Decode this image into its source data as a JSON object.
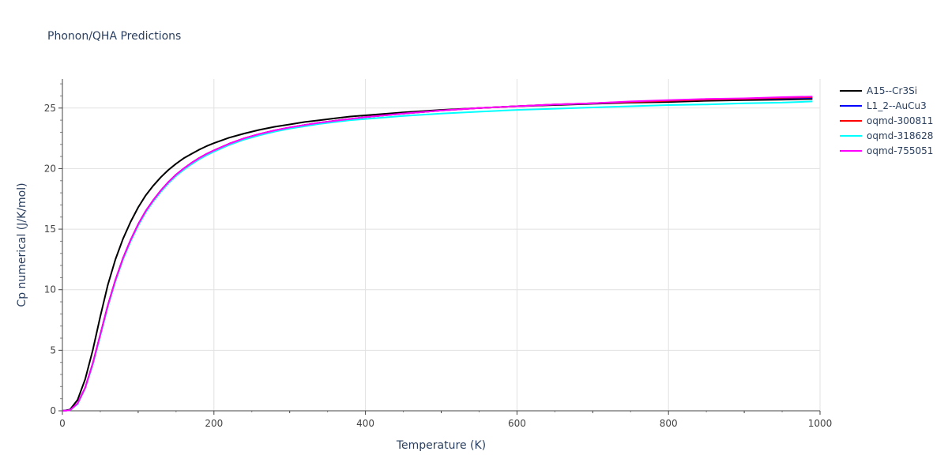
{
  "chart_data": {
    "type": "line",
    "title": "Phonon/QHA Predictions",
    "xlabel": "Temperature (K)",
    "ylabel": "Cp numerical (J/K/mol)",
    "xlim": [
      0,
      1000
    ],
    "ylim": [
      0,
      27.4
    ],
    "xticks": [
      0,
      200,
      400,
      600,
      800,
      1000
    ],
    "yticks": [
      0,
      5,
      10,
      15,
      20,
      25
    ],
    "grid": true,
    "legend_position": "top-right outside",
    "x": [
      0,
      10,
      20,
      30,
      40,
      50,
      60,
      70,
      80,
      90,
      100,
      110,
      120,
      130,
      140,
      150,
      160,
      170,
      180,
      190,
      200,
      220,
      240,
      260,
      280,
      300,
      320,
      340,
      360,
      380,
      400,
      450,
      500,
      550,
      600,
      650,
      700,
      750,
      800,
      850,
      900,
      950,
      990
    ],
    "series": [
      {
        "name": "A15--Cr3Si",
        "color": "#000000",
        "values": [
          0,
          0.1,
          0.9,
          2.6,
          5.0,
          7.8,
          10.4,
          12.5,
          14.2,
          15.6,
          16.8,
          17.8,
          18.6,
          19.3,
          19.9,
          20.4,
          20.85,
          21.2,
          21.55,
          21.85,
          22.1,
          22.55,
          22.9,
          23.2,
          23.45,
          23.65,
          23.85,
          24.0,
          24.15,
          24.3,
          24.4,
          24.65,
          24.85,
          25.0,
          25.15,
          25.25,
          25.35,
          25.45,
          25.5,
          25.6,
          25.65,
          25.7,
          25.75
        ]
      },
      {
        "name": "L1_2--AuCu3",
        "color": "#0000ff",
        "values": [
          0,
          0.05,
          0.6,
          1.9,
          3.9,
          6.3,
          8.7,
          10.8,
          12.6,
          14.1,
          15.4,
          16.5,
          17.4,
          18.2,
          18.9,
          19.5,
          20.0,
          20.45,
          20.85,
          21.2,
          21.5,
          22.05,
          22.5,
          22.85,
          23.15,
          23.4,
          23.6,
          23.8,
          23.95,
          24.1,
          24.25,
          24.55,
          24.8,
          25.0,
          25.15,
          25.3,
          25.4,
          25.5,
          25.6,
          25.7,
          25.75,
          25.8,
          25.85
        ]
      },
      {
        "name": "oqmd-300811",
        "color": "#ff0000",
        "values": [
          0,
          0.05,
          0.6,
          1.9,
          3.9,
          6.3,
          8.7,
          10.8,
          12.6,
          14.1,
          15.4,
          16.5,
          17.4,
          18.2,
          18.9,
          19.5,
          20.0,
          20.45,
          20.85,
          21.2,
          21.5,
          22.05,
          22.5,
          22.85,
          23.15,
          23.4,
          23.6,
          23.8,
          23.95,
          24.1,
          24.25,
          24.55,
          24.8,
          25.0,
          25.15,
          25.3,
          25.4,
          25.5,
          25.6,
          25.7,
          25.75,
          25.85,
          25.9
        ]
      },
      {
        "name": "oqmd-318628",
        "color": "#00ffff",
        "values": [
          0,
          0.05,
          0.55,
          1.85,
          3.8,
          6.2,
          8.6,
          10.7,
          12.5,
          14.0,
          15.3,
          16.4,
          17.3,
          18.1,
          18.8,
          19.4,
          19.9,
          20.35,
          20.75,
          21.1,
          21.4,
          21.95,
          22.4,
          22.75,
          23.05,
          23.3,
          23.5,
          23.7,
          23.85,
          24.0,
          24.1,
          24.35,
          24.55,
          24.7,
          24.85,
          24.95,
          25.05,
          25.15,
          25.25,
          25.3,
          25.4,
          25.45,
          25.55
        ]
      },
      {
        "name": "oqmd-755051",
        "color": "#ff00ff",
        "values": [
          0,
          0.05,
          0.6,
          1.9,
          3.9,
          6.3,
          8.7,
          10.8,
          12.6,
          14.1,
          15.4,
          16.5,
          17.4,
          18.2,
          18.9,
          19.5,
          20.0,
          20.45,
          20.85,
          21.2,
          21.5,
          22.05,
          22.5,
          22.85,
          23.15,
          23.4,
          23.6,
          23.8,
          23.95,
          24.1,
          24.25,
          24.55,
          24.8,
          25.0,
          25.15,
          25.3,
          25.4,
          25.55,
          25.65,
          25.75,
          25.8,
          25.9,
          25.95
        ]
      }
    ]
  }
}
